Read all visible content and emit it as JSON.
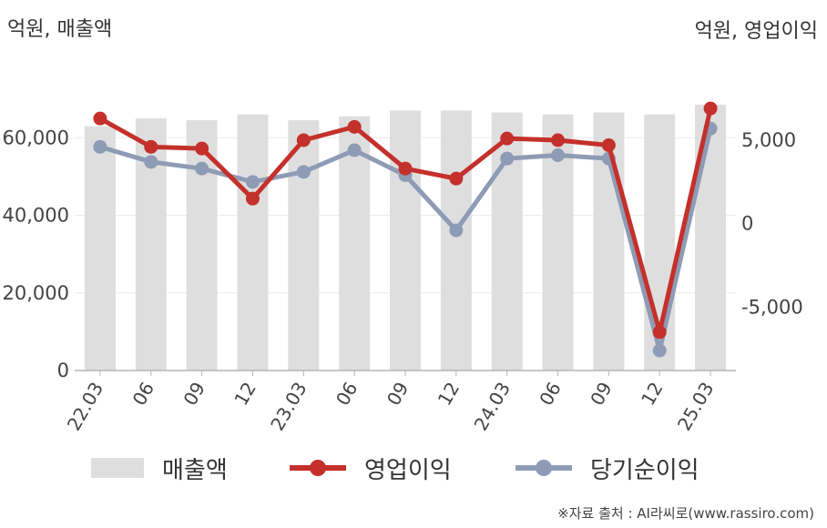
{
  "units": {
    "left": "억원, 매출액",
    "right": "억원, 영업이익"
  },
  "colors": {
    "bar": "#dedede",
    "op": "#c4302b",
    "net": "#8e9bb5",
    "grid": "#ececec",
    "axis": "#b5b5b5"
  },
  "legend": {
    "revenue": "매출액",
    "op": "영업이익",
    "net": "당기순이익"
  },
  "source": "※자료 출처 : AI라씨로(www.rassiro.com)",
  "chart_data": {
    "type": "bar",
    "categories": [
      "22.03",
      "06",
      "09",
      "12",
      "23.03",
      "06",
      "09",
      "12",
      "24.03",
      "06",
      "09",
      "12",
      "25.03"
    ],
    "series": [
      {
        "name": "매출액",
        "type": "bar",
        "axis": "left",
        "values": [
          63000,
          65000,
          64500,
          66000,
          64500,
          65500,
          67000,
          67000,
          66500,
          66000,
          66500,
          66000,
          68500
        ]
      },
      {
        "name": "영업이익",
        "type": "line",
        "axis": "right",
        "values": [
          6300,
          4600,
          4500,
          1500,
          5000,
          5800,
          3300,
          2700,
          5100,
          5000,
          4700,
          -6500,
          6900
        ]
      },
      {
        "name": "당기순이익",
        "type": "line",
        "axis": "right",
        "values": [
          4600,
          3700,
          3300,
          2500,
          3100,
          4400,
          2900,
          -400,
          3900,
          4100,
          3900,
          -7600,
          5700
        ]
      }
    ],
    "y_left": {
      "min": 0,
      "max": 80000,
      "ticks": [
        "0",
        "20,000",
        "40,000",
        "60,000"
      ],
      "tick_values": [
        0,
        20000,
        40000,
        60000
      ]
    },
    "y_right": {
      "min": -8800,
      "max": 9800,
      "ticks": [
        "-5,000",
        "0",
        "5,000"
      ],
      "tick_values": [
        -5000,
        0,
        5000
      ]
    },
    "grid": true,
    "legend_position": "bottom"
  }
}
